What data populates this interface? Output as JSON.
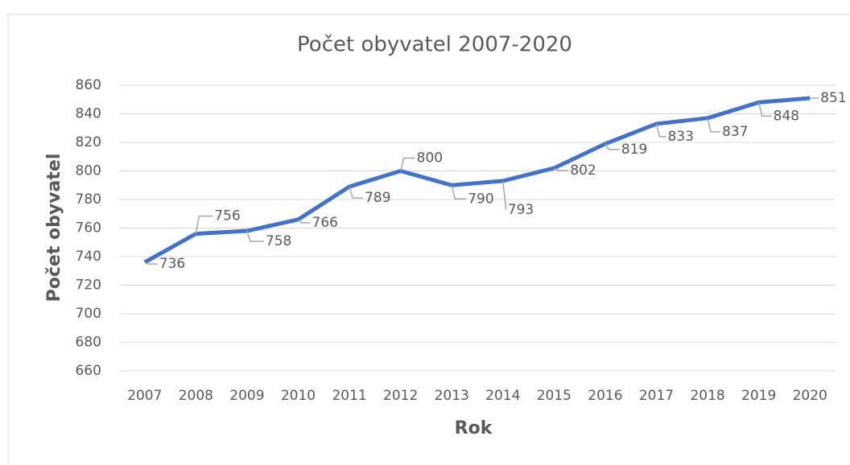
{
  "chart_data": {
    "type": "line",
    "title": "Počet obyvatel 2007-2020",
    "x_label": "Rok",
    "y_label": "Počet obyvatel",
    "categories": [
      "2007",
      "2008",
      "2009",
      "2010",
      "2011",
      "2012",
      "2013",
      "2014",
      "2015",
      "2016",
      "2017",
      "2018",
      "2019",
      "2020"
    ],
    "series": [
      {
        "name": "Počet obyvatel",
        "color": "#4472c4",
        "values": [
          736,
          756,
          758,
          766,
          789,
          800,
          790,
          793,
          802,
          819,
          833,
          837,
          848,
          851
        ]
      }
    ],
    "ylim": [
      660,
      860
    ],
    "yticks": [
      660,
      680,
      700,
      720,
      740,
      760,
      780,
      800,
      820,
      840,
      860
    ],
    "grid": true
  }
}
